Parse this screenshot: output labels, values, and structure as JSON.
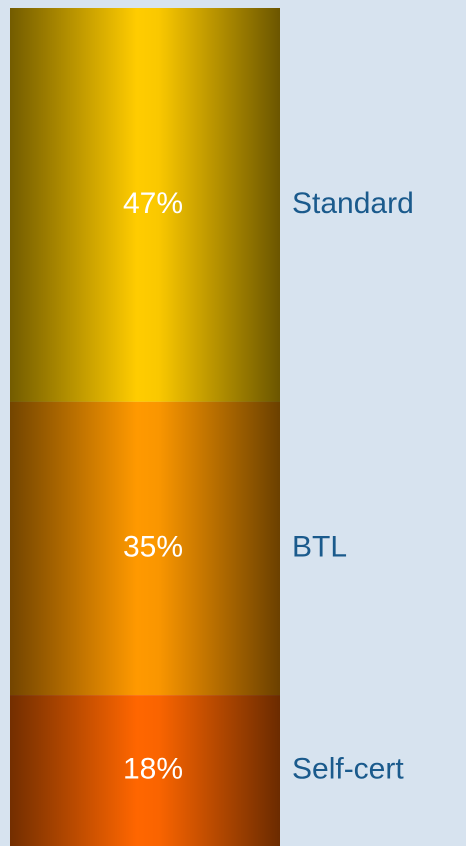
{
  "chart_data": {
    "type": "stacked-bar",
    "series": [
      {
        "name": "Standard",
        "color": "#ffcc00",
        "values": [
          47
        ],
        "value_labels": [
          "47%"
        ]
      },
      {
        "name": "BTL",
        "color": "#ff9900",
        "values": [
          35
        ],
        "value_labels": [
          "35%"
        ]
      },
      {
        "name": "Self-cert",
        "color": "#ff6600",
        "values": [
          18
        ],
        "value_labels": [
          "18%"
        ]
      }
    ],
    "ylim": [
      0,
      100
    ]
  }
}
